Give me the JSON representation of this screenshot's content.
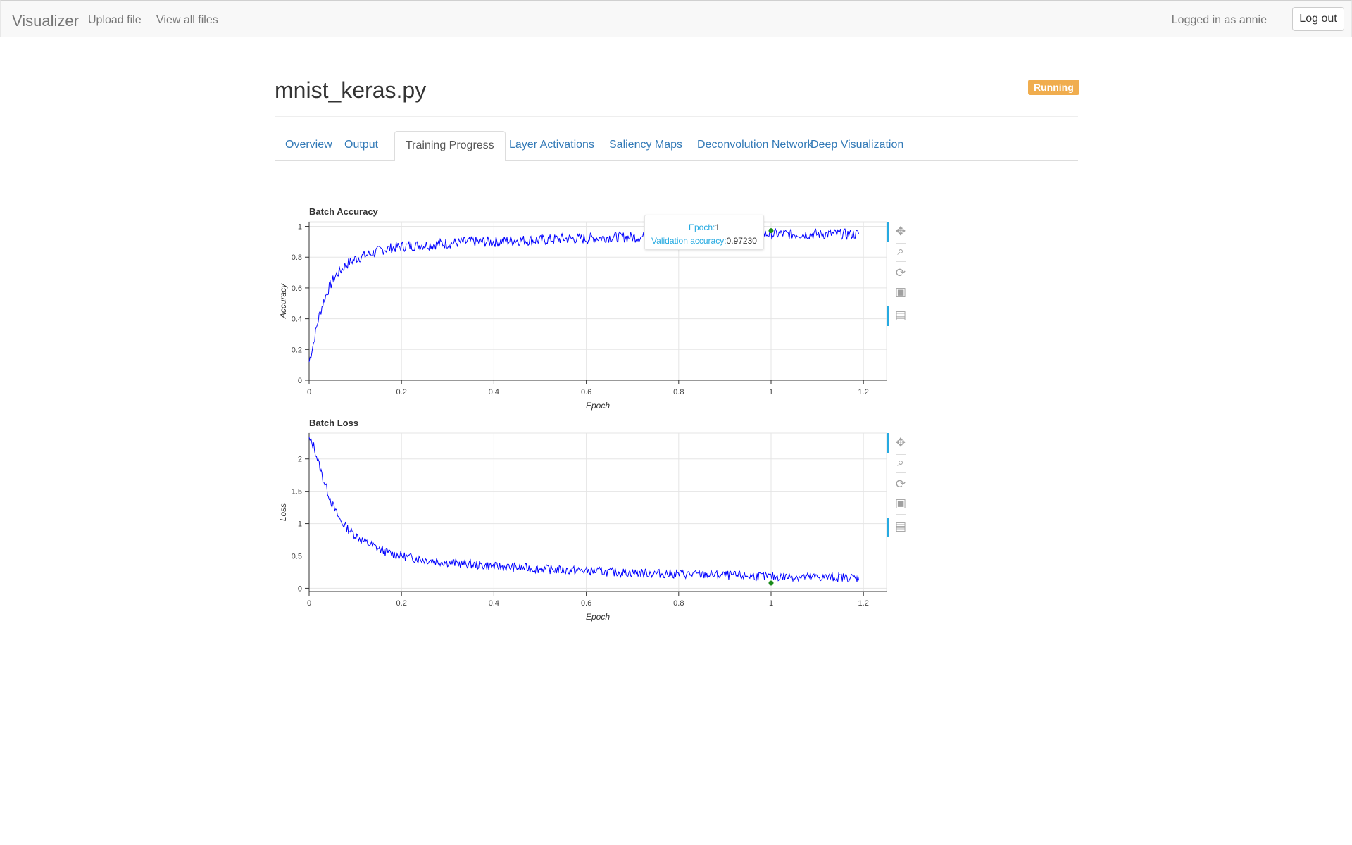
{
  "navbar": {
    "brand": "Visualizer",
    "links": [
      "Upload file",
      "View all files"
    ],
    "user_text": "Logged in as annie",
    "logout_label": "Log out"
  },
  "page": {
    "title": "mnist_keras.py",
    "status": "Running",
    "status_color": "#f0ad4e"
  },
  "tabs": [
    {
      "label": "Overview",
      "active": false
    },
    {
      "label": "Output",
      "active": false
    },
    {
      "label": "Training Progress",
      "active": true
    },
    {
      "label": "Layer Activations",
      "active": false
    },
    {
      "label": "Saliency Maps",
      "active": false
    },
    {
      "label": "Deconvolution Network",
      "active": false
    },
    {
      "label": "Deep Visualization",
      "active": false
    }
  ],
  "tooltip": {
    "epoch_label": "Epoch:",
    "epoch_value": "1",
    "val_label": "Validation accuracy:",
    "val_value": "0.97230"
  },
  "toolbar_icons": [
    "pan-icon",
    "box-zoom-icon",
    "reset-icon",
    "save-icon",
    "hover-icon"
  ],
  "chart_data": [
    {
      "type": "line",
      "title": "Batch Accuracy",
      "xlabel": "Epoch",
      "ylabel": "Accuracy",
      "xlim": [
        0,
        1.25
      ],
      "ylim": [
        0,
        1.03
      ],
      "xticks": [
        "0",
        "0.2",
        "0.4",
        "0.6",
        "0.8",
        "1",
        "1.2"
      ],
      "yticks": [
        "0",
        "0.2",
        "0.4",
        "0.6",
        "0.8",
        "1"
      ],
      "grid": true,
      "line_color": "#0000ff",
      "series": [
        {
          "x": [
            0,
            0.01,
            0.02,
            0.03,
            0.04,
            0.05,
            0.06,
            0.07,
            0.08,
            0.09,
            0.1,
            0.12,
            0.14,
            0.16,
            0.18,
            0.2,
            0.25,
            0.3,
            0.35,
            0.4,
            0.45,
            0.5,
            0.55,
            0.6,
            0.65,
            0.7,
            0.75,
            0.8,
            0.85,
            0.9,
            0.95,
            1.0,
            1.05,
            1.1,
            1.15,
            1.19
          ],
          "values": [
            0.12,
            0.25,
            0.4,
            0.5,
            0.58,
            0.64,
            0.69,
            0.72,
            0.75,
            0.77,
            0.79,
            0.81,
            0.83,
            0.85,
            0.86,
            0.87,
            0.88,
            0.89,
            0.9,
            0.9,
            0.91,
            0.91,
            0.92,
            0.92,
            0.93,
            0.93,
            0.93,
            0.94,
            0.94,
            0.94,
            0.95,
            0.95,
            0.95,
            0.95,
            0.95,
            0.95
          ]
        }
      ],
      "highlight": {
        "x": 1.0,
        "y": 0.9723
      }
    },
    {
      "type": "line",
      "title": "Batch Loss",
      "xlabel": "Epoch",
      "ylabel": "Loss",
      "xlim": [
        0,
        1.25
      ],
      "ylim": [
        -0.05,
        2.4
      ],
      "xticks": [
        "0",
        "0.2",
        "0.4",
        "0.6",
        "0.8",
        "1",
        "1.2"
      ],
      "yticks": [
        "0",
        "0.5",
        "1",
        "1.5",
        "2"
      ],
      "grid": true,
      "line_color": "#0000ff",
      "series": [
        {
          "x": [
            0,
            0.01,
            0.02,
            0.03,
            0.04,
            0.05,
            0.06,
            0.07,
            0.08,
            0.09,
            0.1,
            0.12,
            0.14,
            0.16,
            0.18,
            0.2,
            0.25,
            0.3,
            0.35,
            0.4,
            0.45,
            0.5,
            0.55,
            0.6,
            0.65,
            0.7,
            0.75,
            0.8,
            0.85,
            0.9,
            0.95,
            1.0,
            1.05,
            1.1,
            1.15,
            1.19
          ],
          "values": [
            2.3,
            2.2,
            1.95,
            1.7,
            1.5,
            1.3,
            1.15,
            1.02,
            0.95,
            0.88,
            0.82,
            0.72,
            0.65,
            0.58,
            0.53,
            0.5,
            0.44,
            0.4,
            0.37,
            0.34,
            0.32,
            0.3,
            0.28,
            0.27,
            0.25,
            0.24,
            0.23,
            0.22,
            0.21,
            0.2,
            0.19,
            0.18,
            0.18,
            0.17,
            0.17,
            0.16
          ]
        }
      ],
      "highlight": {
        "x": 1.0,
        "y": 0.08
      }
    }
  ]
}
